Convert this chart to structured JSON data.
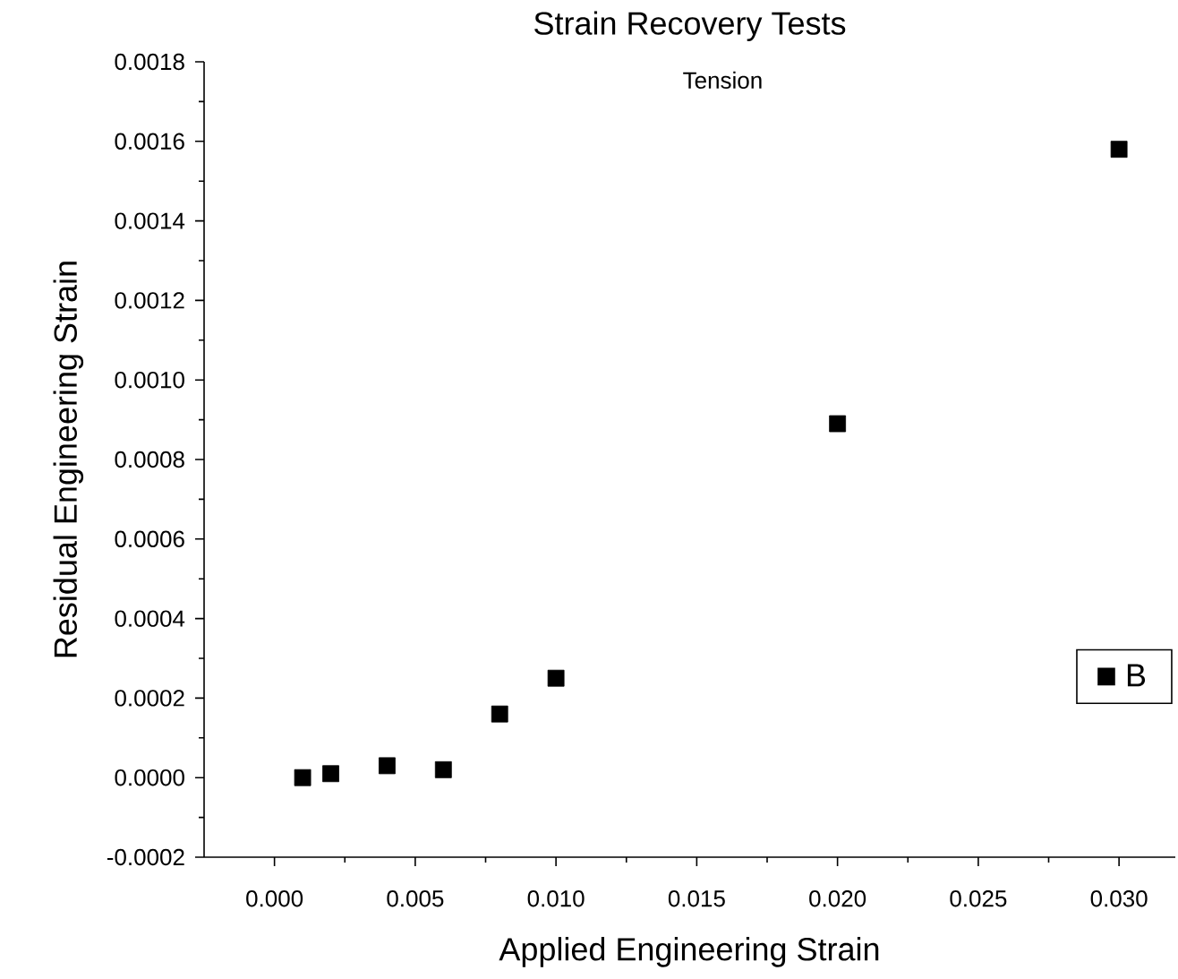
{
  "chart_data": {
    "type": "scatter",
    "title": "Strain Recovery Tests",
    "subtitle": "Tension",
    "xlabel": "Applied Engineering Strain",
    "ylabel": "Residual Engineering Strain",
    "x": [
      0.001,
      0.002,
      0.004,
      0.006,
      0.008,
      0.01,
      0.02,
      0.03
    ],
    "series": [
      {
        "name": "B",
        "color": "#000000",
        "values": [
          0.0,
          1e-05,
          3e-05,
          2e-05,
          0.00016,
          0.00025,
          0.00089,
          0.00158
        ]
      }
    ],
    "xlim": [
      -0.0025,
      0.032
    ],
    "ylim": [
      -0.0002,
      0.0018
    ],
    "xticks": [
      {
        "value": 0.0,
        "label": "0.000"
      },
      {
        "value": 0.005,
        "label": "0.005"
      },
      {
        "value": 0.01,
        "label": "0.010"
      },
      {
        "value": 0.015,
        "label": "0.015"
      },
      {
        "value": 0.02,
        "label": "0.020"
      },
      {
        "value": 0.025,
        "label": "0.025"
      },
      {
        "value": 0.03,
        "label": "0.030"
      }
    ],
    "yticks": [
      {
        "value": -0.0002,
        "label": "-0.0002"
      },
      {
        "value": 0.0,
        "label": "0.0000"
      },
      {
        "value": 0.0002,
        "label": "0.0002"
      },
      {
        "value": 0.0004,
        "label": "0.0004"
      },
      {
        "value": 0.0006,
        "label": "0.0006"
      },
      {
        "value": 0.0008,
        "label": "0.0008"
      },
      {
        "value": 0.001,
        "label": "0.0010"
      },
      {
        "value": 0.0012,
        "label": "0.0012"
      },
      {
        "value": 0.0014,
        "label": "0.0014"
      },
      {
        "value": 0.0016,
        "label": "0.0016"
      },
      {
        "value": 0.0018,
        "label": "0.0018"
      }
    ],
    "marker": "square",
    "legend": "right",
    "grid": false
  }
}
